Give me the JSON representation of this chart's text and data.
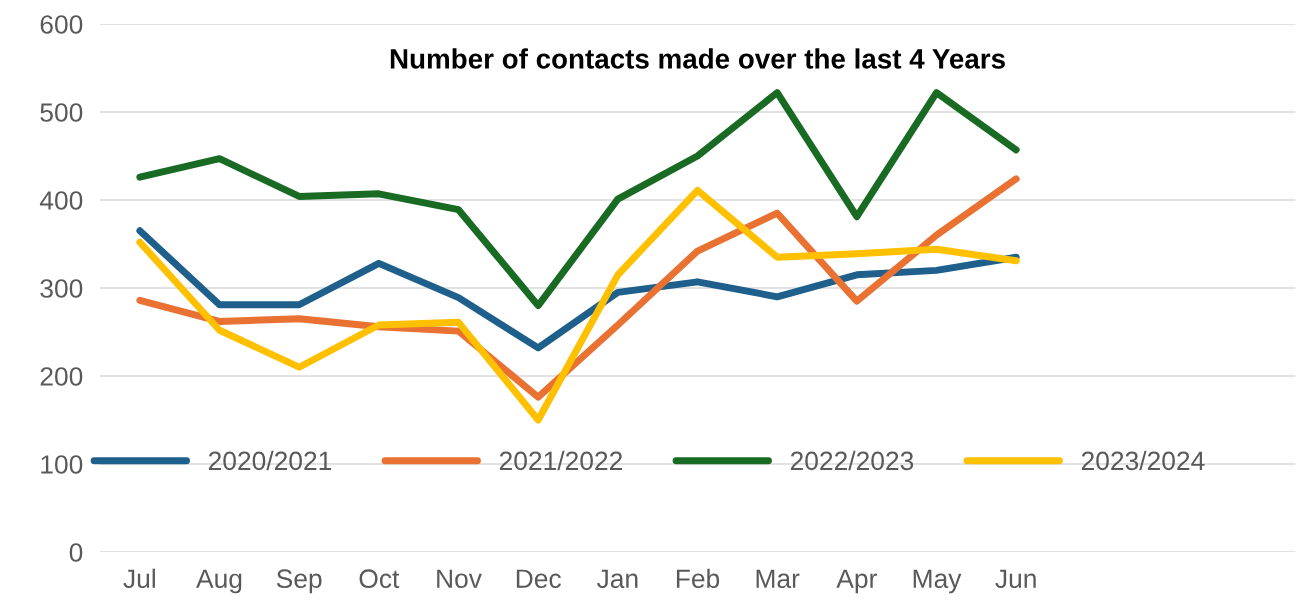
{
  "chart_data": {
    "type": "line",
    "title": "Number of contacts made over the last 4 Years",
    "categories": [
      "Jul",
      "Aug",
      "Sep",
      "Oct",
      "Nov",
      "Dec",
      "Jan",
      "Feb",
      "Mar",
      "Apr",
      "May",
      "Jun",
      null,
      null,
      null
    ],
    "series": [
      {
        "name": "2020/2021",
        "color": "#1f5f8b",
        "values": [
          365,
          281,
          281,
          328,
          289,
          232,
          295,
          307,
          290,
          315,
          320,
          335,
          null,
          null,
          null
        ]
      },
      {
        "name": "2021/2022",
        "color": "#e97132",
        "values": [
          286,
          262,
          265,
          256,
          251,
          176,
          258,
          342,
          385,
          285,
          360,
          424,
          null,
          null,
          null
        ]
      },
      {
        "name": "2022/2023",
        "color": "#196b24",
        "values": [
          426,
          447,
          404,
          407,
          389,
          280,
          401,
          450,
          522,
          381,
          522,
          457,
          null,
          null,
          null
        ]
      },
      {
        "name": "2023/2024",
        "color": "#ffc000",
        "values": [
          352,
          252,
          210,
          258,
          261,
          150,
          315,
          411,
          335,
          339,
          344,
          331,
          null,
          null,
          null
        ]
      }
    ],
    "ylim": [
      0,
      600
    ],
    "yticks": [
      0,
      100,
      200,
      300,
      400,
      500,
      600
    ],
    "grid": "y",
    "legend": "bottom",
    "marker": "none",
    "line_style": "solid"
  }
}
